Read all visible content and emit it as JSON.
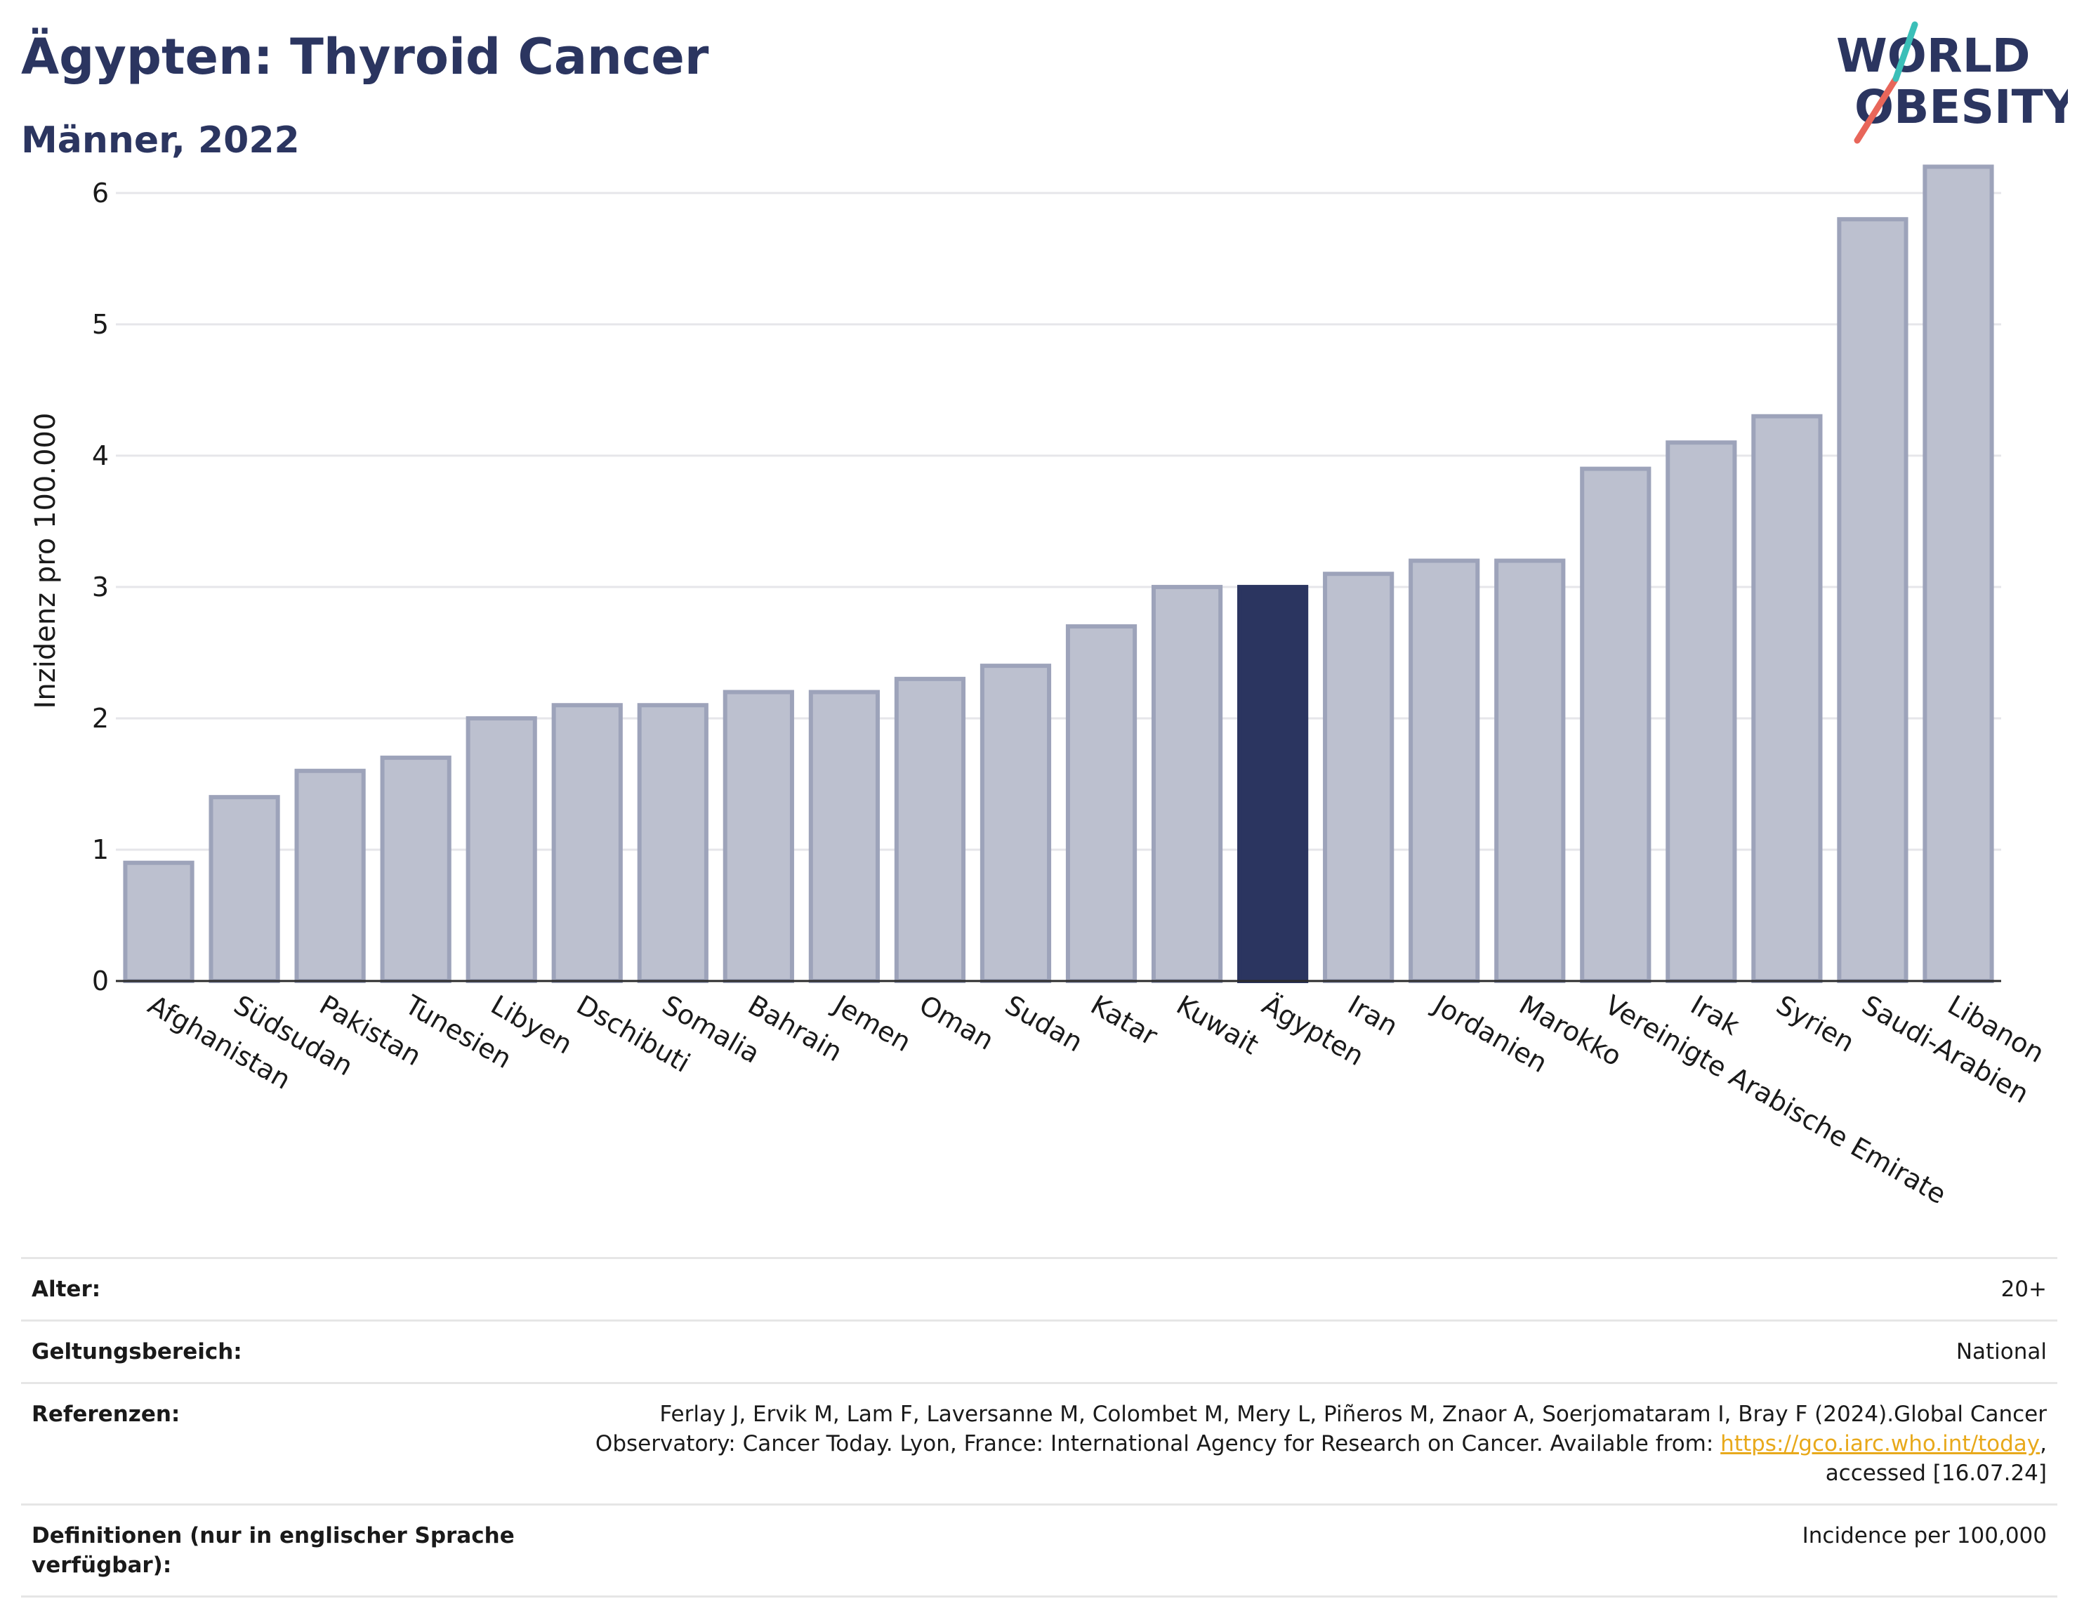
{
  "header": {
    "title": "Ägypten: Thyroid Cancer",
    "subtitle": "Männer, 2022"
  },
  "logo": {
    "line1": "WORLD",
    "line2": "OBESITY",
    "colors": {
      "text": "#2b3560",
      "slash_red": "#e8665a",
      "slash_teal": "#3bbfb8"
    }
  },
  "chart_data": {
    "type": "bar",
    "ylabel": "Inzidenz pro 100.000",
    "xlabel": "",
    "ylim": [
      0,
      6.4
    ],
    "yticks": [
      0,
      1,
      2,
      3,
      4,
      5,
      6
    ],
    "grid": true,
    "highlight": "Ägypten",
    "colors": {
      "bar": "#bcc0cf",
      "bar_border": "#9da3ba",
      "highlight": "#2b3560"
    },
    "categories": [
      "Afghanistan",
      "Südsudan",
      "Pakistan",
      "Tunesien",
      "Libyen",
      "Dschibuti",
      "Somalia",
      "Bahrain",
      "Jemen",
      "Oman",
      "Sudan",
      "Katar",
      "Kuwait",
      "Ägypten",
      "Iran",
      "Jordanien",
      "Marokko",
      "Vereinigte Arabische Emirate",
      "Irak",
      "Syrien",
      "Saudi-Arabien",
      "Libanon"
    ],
    "values": [
      0.9,
      1.4,
      1.6,
      1.7,
      2.0,
      2.1,
      2.1,
      2.2,
      2.2,
      2.3,
      2.4,
      2.7,
      3.0,
      3.0,
      3.1,
      3.2,
      3.2,
      3.9,
      4.1,
      4.3,
      5.8,
      6.2
    ]
  },
  "meta": {
    "age_label": "Alter:",
    "age_value": "20+",
    "scope_label": "Geltungsbereich:",
    "scope_value": "National",
    "ref_label": "Referenzen:",
    "ref_text_1": "Ferlay J, Ervik M, Lam F, Laversanne M, Colombet M, Mery L, Piñeros M, Znaor A, Soerjomataram I, Bray F (2024).Global Cancer",
    "ref_text_2": "Observatory: Cancer Today. Lyon, France: International Agency for Research on Cancer. Available from: ",
    "ref_link": "https://gco.iarc.who.int/today",
    "ref_text_3": ",",
    "ref_text_4": "accessed [16.07.24]",
    "def_label": "Definitionen (nur in englischer Sprache verfügbar):",
    "def_value": "Incidence per 100,000"
  }
}
